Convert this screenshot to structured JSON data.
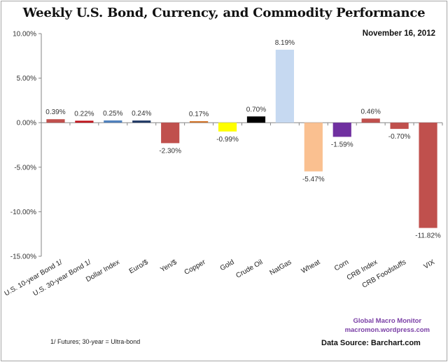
{
  "chart_data": {
    "type": "bar",
    "title": "Weekly U.S. Bond, Currency, and Commodity Performance",
    "subtitle": "November 16, 2012",
    "xlabel": "",
    "ylabel": "",
    "ylim": [
      -15,
      10
    ],
    "yticks": [
      10,
      5,
      0,
      -5,
      -10,
      -15
    ],
    "ytick_labels": [
      "10.00%",
      "5.00%",
      "0.00%",
      "-5.00%",
      "-10.00%",
      "-15.00%"
    ],
    "grid": false,
    "legend": "none",
    "categories": [
      "U.S. 10-year Bond 1/",
      "U.S. 30-year Bond 1/",
      "Dollar Index",
      "Euro/$",
      "Yen/$",
      "Copper",
      "Gold",
      "Crude Oil",
      "NatGas",
      "Wheat",
      "Corn",
      "CRB Index",
      "CRB Foodstuffs",
      "VIX"
    ],
    "values": [
      0.39,
      0.22,
      0.25,
      0.24,
      -2.3,
      0.17,
      -0.99,
      0.7,
      8.19,
      -5.47,
      -1.59,
      0.46,
      -0.7,
      -11.82
    ],
    "data_labels": [
      "0.39%",
      "0.22%",
      "0.25%",
      "0.24%",
      "-2.30%",
      "0.17%",
      "-0.99%",
      "0.70%",
      "8.19%",
      "-5.47%",
      "-1.59%",
      "0.46%",
      "-0.70%",
      "-11.82%"
    ],
    "colors": [
      "#c0504d",
      "#c0141c",
      "#4f81bd",
      "#1f3864",
      "#c0504d",
      "#d2772f",
      "#ffff00",
      "#000000",
      "#c6d9f1",
      "#fac090",
      "#7030a0",
      "#c0504d",
      "#c0504d",
      "#c0504d"
    ]
  },
  "annotations": {
    "brand_line1": "Global Macro Monitor",
    "brand_line2": "macromon.wordpress.com",
    "source": "Data Source:  Barchart.com",
    "footnote": "1/  Futures; 30-year = Ultra-bond"
  }
}
